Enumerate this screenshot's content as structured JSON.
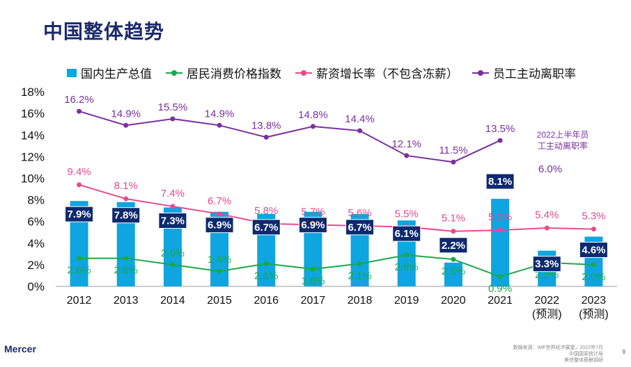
{
  "page": {
    "title": "中国整体趋势",
    "page_number": "9",
    "source_note": [
      "数据来源：IMF世界经济展望，2022年7月",
      "中国国家统计局",
      "美世整体薪酬调研"
    ],
    "logo_text": "Mercer"
  },
  "legend": [
    {
      "label": "国内生产总值",
      "kind": "bar",
      "color": "#0ea5e0"
    },
    {
      "label": "居民消费价格指数",
      "kind": "line",
      "color": "#19a84a"
    },
    {
      "label": "薪资增长率（不包含冻薪）",
      "kind": "line",
      "color": "#e64a8c"
    },
    {
      "label": "员工主动离职率",
      "kind": "line",
      "color": "#7b2f9d"
    }
  ],
  "chart_data": {
    "type": "bar",
    "categories": [
      "2012",
      "2013",
      "2014",
      "2015",
      "2016",
      "2017",
      "2018",
      "2019",
      "2020",
      "2021",
      "2022\n(预测)",
      "2023\n(预测)"
    ],
    "yticks": [
      "0%",
      "2%",
      "4%",
      "6%",
      "8%",
      "10%",
      "12%",
      "14%",
      "16%",
      "18%"
    ],
    "ylim": [
      0,
      18
    ],
    "series": [
      {
        "name": "国内生产总值",
        "kind": "bar",
        "color": "#0ea5e0",
        "values": [
          7.9,
          7.8,
          7.3,
          6.9,
          6.7,
          6.9,
          6.7,
          6.1,
          2.2,
          8.1,
          3.3,
          4.6
        ],
        "labels": [
          "7.9%",
          "7.8%",
          "7.3%",
          "6.9%",
          "6.7%",
          "6.9%",
          "6.7%",
          "6.1%",
          "2.2%",
          "8.1%",
          "3.3%",
          "4.6%"
        ]
      },
      {
        "name": "居民消费价格指数",
        "kind": "line",
        "color": "#19a84a",
        "values": [
          2.6,
          2.6,
          2.0,
          1.4,
          2.1,
          1.6,
          2.1,
          2.9,
          2.5,
          0.9,
          2.2,
          2.0
        ],
        "labels": [
          "2.6%",
          "2.6%",
          "2.0%",
          "1.4%",
          "2.1%",
          "1.6%",
          "2.1%",
          "2.9%",
          "2.5%",
          "0.9%",
          "2.2%",
          "2.0%"
        ]
      },
      {
        "name": "薪资增长率（不包含冻薪）",
        "kind": "line",
        "color": "#e64a8c",
        "values": [
          9.4,
          8.1,
          7.4,
          6.7,
          5.8,
          5.7,
          5.6,
          5.5,
          5.1,
          5.2,
          5.4,
          5.3
        ],
        "labels": [
          "9.4%",
          "8.1%",
          "7.4%",
          "6.7%",
          "5.8%",
          "5.7%",
          "5.6%",
          "5.5%",
          "5.1%",
          "5.2%",
          "5.4%",
          "5.3%"
        ]
      },
      {
        "name": "员工主动离职率",
        "kind": "line",
        "color": "#7b2f9d",
        "values": [
          16.2,
          14.9,
          15.5,
          14.9,
          13.8,
          14.8,
          14.4,
          12.1,
          11.5,
          13.5,
          null,
          null
        ],
        "labels": [
          "16.2%",
          "14.9%",
          "15.5%",
          "14.9%",
          "13.8%",
          "14.8%",
          "14.4%",
          "12.1%",
          "11.5%",
          "13.5%",
          "",
          ""
        ]
      }
    ],
    "annotations": [
      {
        "text": "2022上半年员\n工主动离职率",
        "color": "#7b2f9d"
      },
      {
        "text": "6.0%",
        "color": "#7b2f9d"
      }
    ]
  }
}
